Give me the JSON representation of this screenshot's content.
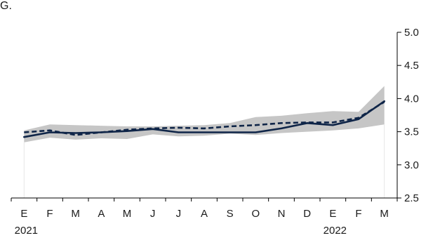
{
  "top_label": "G.",
  "chart_data": {
    "type": "line",
    "categories": [
      "E",
      "F",
      "M",
      "A",
      "M",
      "J",
      "J",
      "A",
      "S",
      "O",
      "N",
      "D",
      "E",
      "F",
      "M"
    ],
    "year_labels": [
      {
        "index": 0,
        "label": "2021"
      },
      {
        "index": 12,
        "label": "2022"
      }
    ],
    "ylim": [
      2.5,
      5.0
    ],
    "yticks": [
      2.5,
      3.0,
      3.5,
      4.0,
      4.5,
      5.0
    ],
    "ytick_labels": [
      "2.5",
      "3.0",
      "3.5",
      "4.0",
      "4.5",
      "5.0"
    ],
    "y_axis_side": "right",
    "grid": false,
    "legend": "none",
    "band": {
      "upper": [
        3.52,
        3.61,
        3.6,
        3.59,
        3.58,
        3.58,
        3.59,
        3.6,
        3.63,
        3.72,
        3.74,
        3.78,
        3.81,
        3.8,
        4.19
      ],
      "lower": [
        3.34,
        3.41,
        3.38,
        3.4,
        3.39,
        3.46,
        3.43,
        3.44,
        3.47,
        3.45,
        3.48,
        3.5,
        3.52,
        3.55,
        3.61
      ],
      "color": "#c6c6c6"
    },
    "series": [
      {
        "style": "solid",
        "color": "#0f2548",
        "values": [
          3.42,
          3.49,
          3.48,
          3.49,
          3.51,
          3.54,
          3.49,
          3.49,
          3.49,
          3.49,
          3.55,
          3.63,
          3.6,
          3.69,
          3.96
        ]
      },
      {
        "style": "dashed",
        "color": "#0f2548",
        "values": [
          3.49,
          3.52,
          3.45,
          3.49,
          3.53,
          3.55,
          3.56,
          3.55,
          3.58,
          3.6,
          3.63,
          3.64,
          3.64,
          3.71,
          3.95
        ]
      }
    ]
  }
}
